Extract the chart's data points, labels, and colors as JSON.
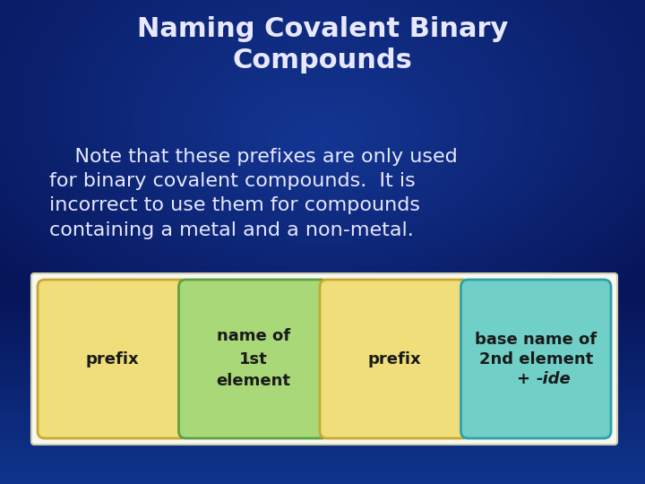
{
  "title": "Naming Covalent Binary\nCompounds",
  "body_text": "    Note that these prefixes are only used\nfor binary covalent compounds.  It is\nincorrect to use them for compounds\ncontaining a metal and a non-metal.",
  "bg_color_top": "#0d2b6e",
  "bg_color_bottom": "#1a4db5",
  "bg_color_mid": "#0a3a9a",
  "title_color": "#e8e8ff",
  "body_color": "#e8e8ff",
  "title_fontsize": 22,
  "body_fontsize": 16,
  "boxes": [
    {
      "label": "prefix",
      "color": "#f0de7a",
      "border_color": "#c8a830",
      "text_color": "#1a1a1a",
      "multiline": false
    },
    {
      "label": "name of\n1st\nelement",
      "color": "#a8d878",
      "border_color": "#60a040",
      "text_color": "#1a1a1a",
      "multiline": true
    },
    {
      "label": "prefix",
      "color": "#f0de7a",
      "border_color": "#c8a830",
      "text_color": "#1a1a1a",
      "multiline": false
    },
    {
      "label": "base name of\n2nd element\n+ -ide",
      "color": "#70d0c8",
      "border_color": "#30a0a8",
      "text_color": "#1a1a1a",
      "multiline": true
    }
  ],
  "box_panel_bg": "#f8f8f0",
  "box_panel_border": "#d0d0b0",
  "italic_word": "-ide"
}
